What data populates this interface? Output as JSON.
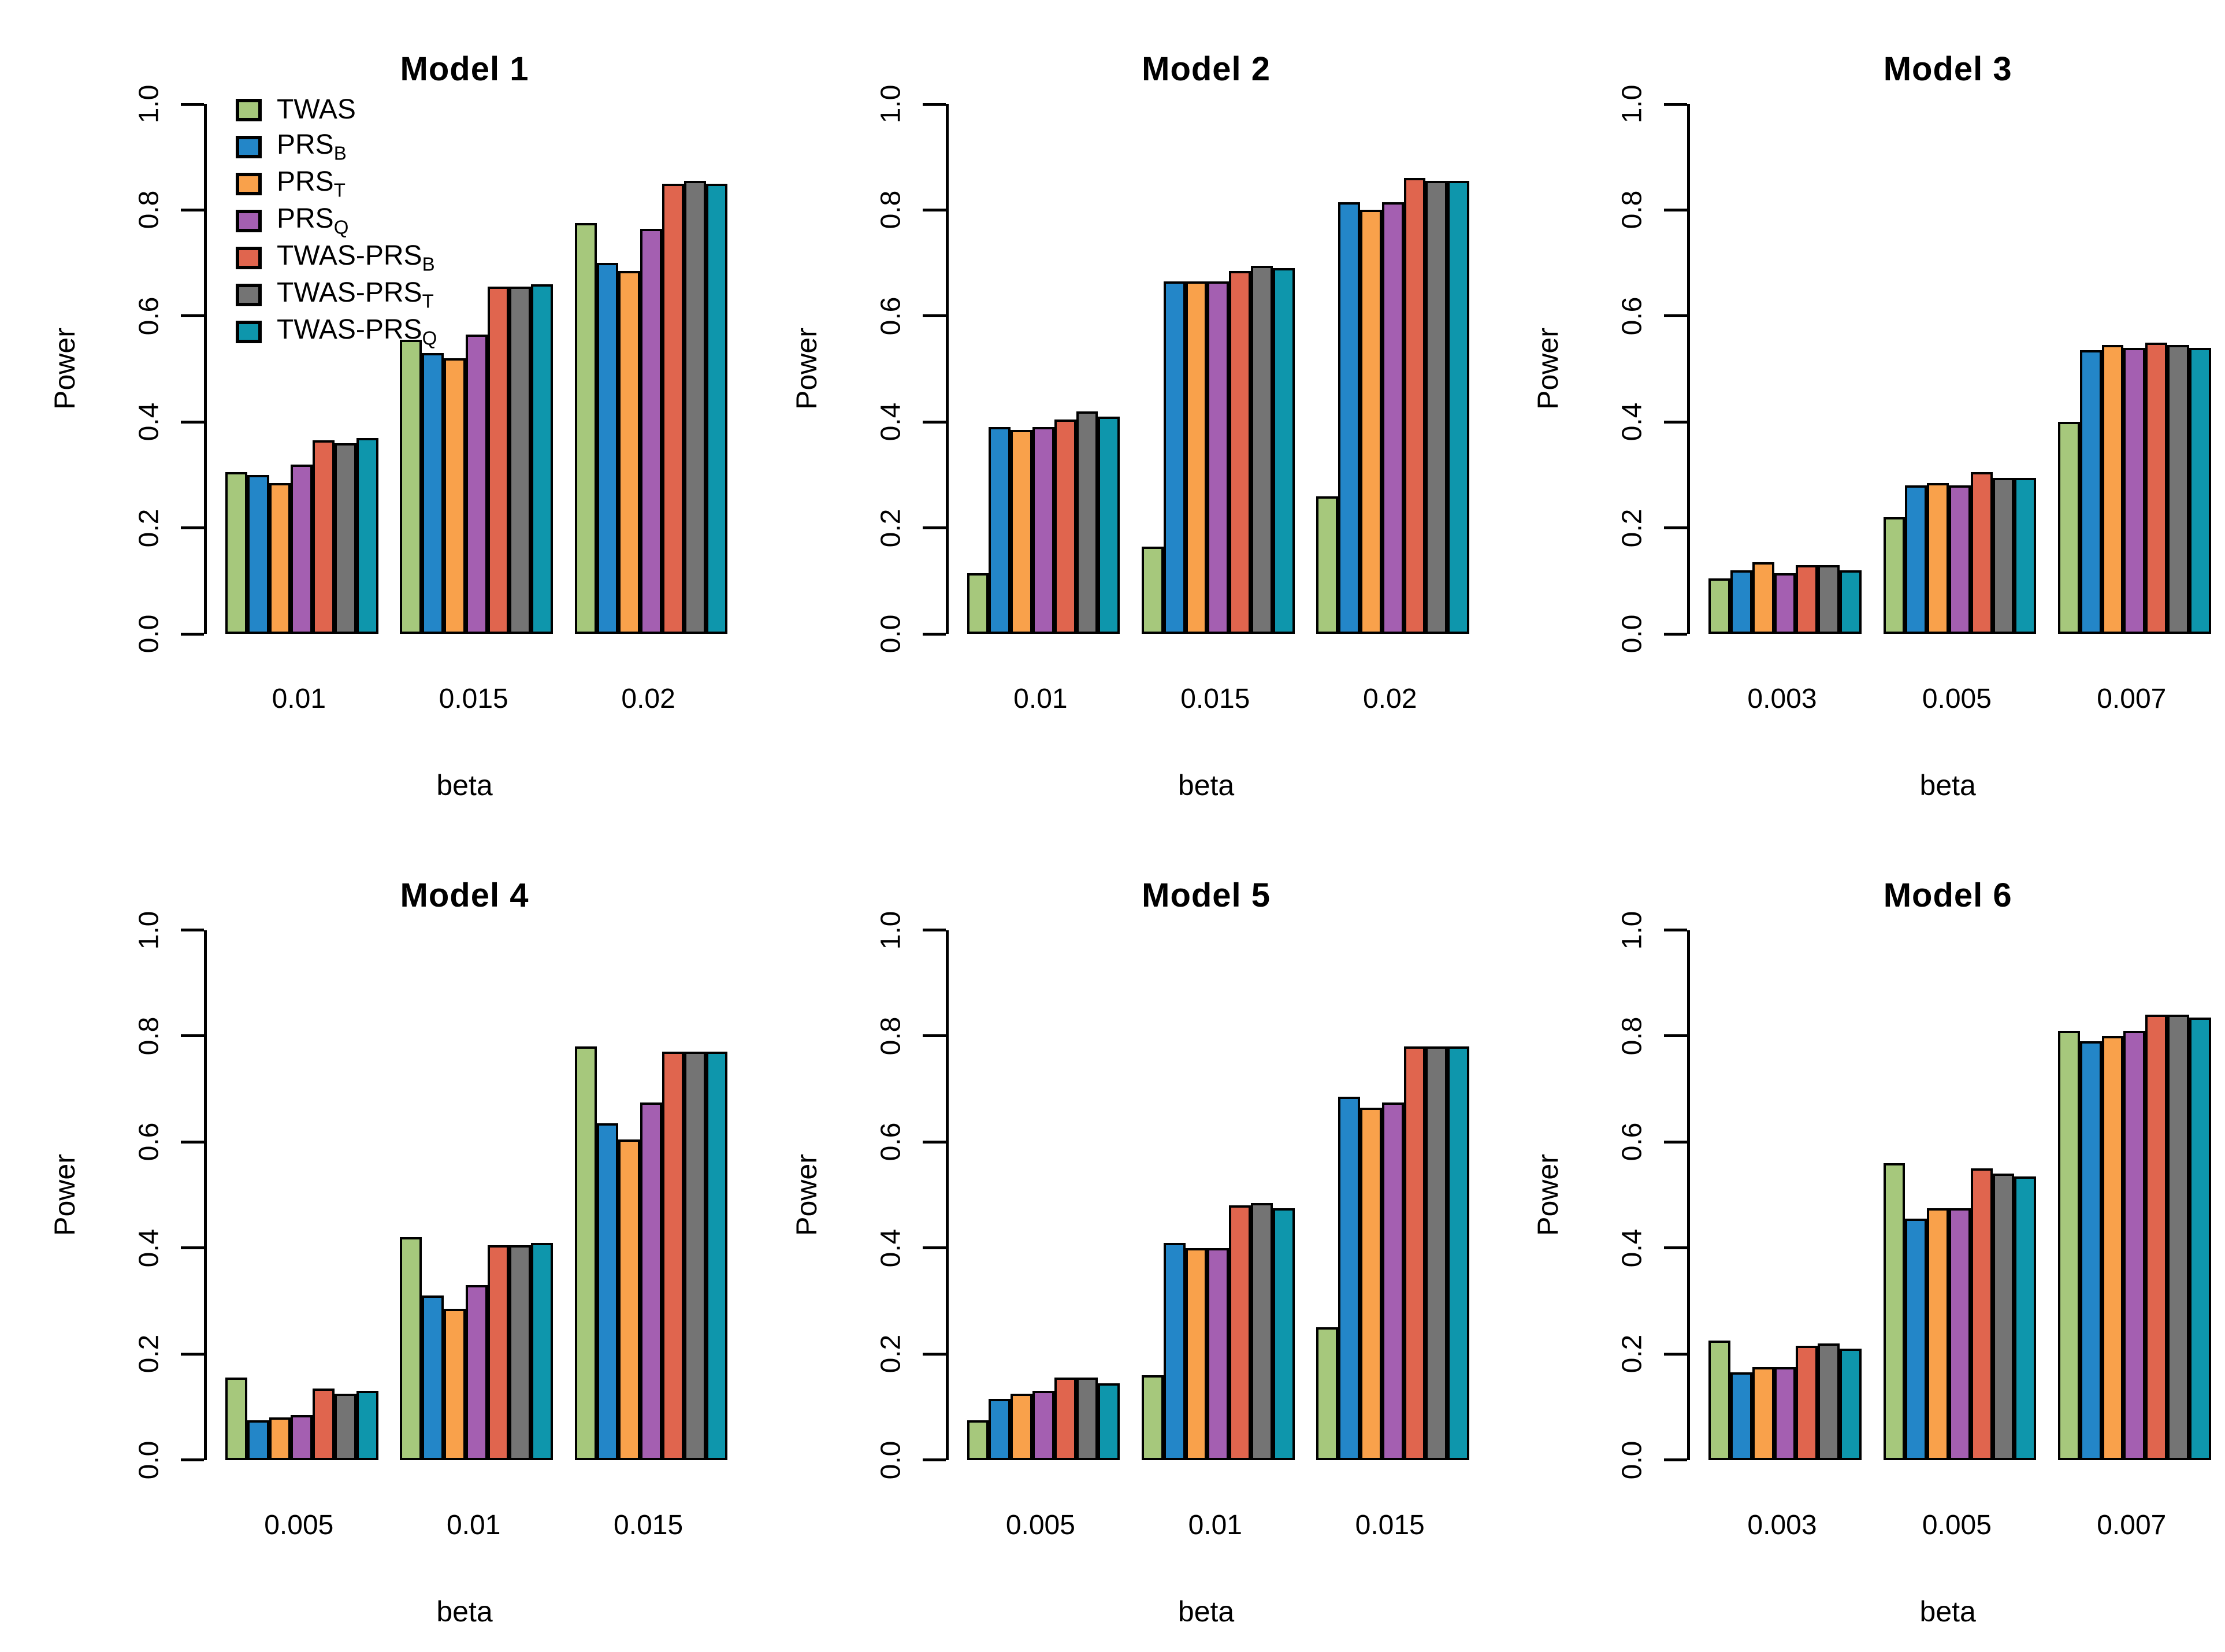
{
  "figure": {
    "ylabel": "Power",
    "xlabel": "beta",
    "ytick_labels": [
      "0.0",
      "0.2",
      "0.4",
      "0.6",
      "0.8",
      "1.0"
    ],
    "background_color": "#ffffff",
    "axis_color": "#000000",
    "bar_border_color": "#000000",
    "layout": "2 rows x 3 columns of grouped bar panels, legend inside Model 1 panel top-left"
  },
  "palette": {
    "TWAS": "#a6c87c",
    "PRS_B": "#2386c8",
    "PRS_T": "#f9a14b",
    "PRS_Q": "#a45fb1",
    "TWAS-PRS_B": "#e0654e",
    "TWAS-PRS_T": "#747474",
    "TWAS-PRS_Q": "#0e96ac"
  },
  "legend": {
    "position": "top-left inside Model 1 plot",
    "items": [
      {
        "name": "TWAS",
        "label_base": "TWAS",
        "label_sub": "",
        "color": "#a6c87c"
      },
      {
        "name": "PRS_B",
        "label_base": "PRS",
        "label_sub": "B",
        "color": "#2386c8"
      },
      {
        "name": "PRS_T",
        "label_base": "PRS",
        "label_sub": "T",
        "color": "#f9a14b"
      },
      {
        "name": "PRS_Q",
        "label_base": "PRS",
        "label_sub": "Q",
        "color": "#a45fb1"
      },
      {
        "name": "TWAS-PRS_B",
        "label_base": "TWAS-PRS",
        "label_sub": "B",
        "color": "#e0654e"
      },
      {
        "name": "TWAS-PRS_T",
        "label_base": "TWAS-PRS",
        "label_sub": "T",
        "color": "#747474"
      },
      {
        "name": "TWAS-PRS_Q",
        "label_base": "TWAS-PRS",
        "label_sub": "Q",
        "color": "#0e96ac"
      }
    ]
  },
  "chart_data": [
    {
      "type": "bar",
      "title": "Model 1",
      "xlabel": "beta",
      "ylabel": "Power",
      "ylim": [
        0,
        1
      ],
      "grid": false,
      "categories": [
        "0.01",
        "0.015",
        "0.02"
      ],
      "series": [
        {
          "name": "TWAS",
          "color": "#a6c87c",
          "values": [
            0.305,
            0.555,
            0.775
          ]
        },
        {
          "name": "PRS_B",
          "color": "#2386c8",
          "values": [
            0.3,
            0.53,
            0.7
          ]
        },
        {
          "name": "PRS_T",
          "color": "#f9a14b",
          "values": [
            0.285,
            0.52,
            0.685
          ]
        },
        {
          "name": "PRS_Q",
          "color": "#a45fb1",
          "values": [
            0.32,
            0.565,
            0.765
          ]
        },
        {
          "name": "TWAS-PRS_B",
          "color": "#e0654e",
          "values": [
            0.365,
            0.655,
            0.85
          ]
        },
        {
          "name": "TWAS-PRS_T",
          "color": "#747474",
          "values": [
            0.36,
            0.655,
            0.855
          ]
        },
        {
          "name": "TWAS-PRS_Q",
          "color": "#0e96ac",
          "values": [
            0.37,
            0.66,
            0.85
          ]
        }
      ]
    },
    {
      "type": "bar",
      "title": "Model 2",
      "xlabel": "beta",
      "ylabel": "Power",
      "ylim": [
        0,
        1
      ],
      "grid": false,
      "categories": [
        "0.01",
        "0.015",
        "0.02"
      ],
      "series": [
        {
          "name": "TWAS",
          "color": "#a6c87c",
          "values": [
            0.115,
            0.165,
            0.26
          ]
        },
        {
          "name": "PRS_B",
          "color": "#2386c8",
          "values": [
            0.39,
            0.665,
            0.815
          ]
        },
        {
          "name": "PRS_T",
          "color": "#f9a14b",
          "values": [
            0.385,
            0.665,
            0.8
          ]
        },
        {
          "name": "PRS_Q",
          "color": "#a45fb1",
          "values": [
            0.39,
            0.665,
            0.815
          ]
        },
        {
          "name": "TWAS-PRS_B",
          "color": "#e0654e",
          "values": [
            0.405,
            0.685,
            0.86
          ]
        },
        {
          "name": "TWAS-PRS_T",
          "color": "#747474",
          "values": [
            0.42,
            0.695,
            0.855
          ]
        },
        {
          "name": "TWAS-PRS_Q",
          "color": "#0e96ac",
          "values": [
            0.41,
            0.69,
            0.855
          ]
        }
      ]
    },
    {
      "type": "bar",
      "title": "Model 3",
      "xlabel": "beta",
      "ylabel": "Power",
      "ylim": [
        0,
        1
      ],
      "grid": false,
      "categories": [
        "0.003",
        "0.005",
        "0.007"
      ],
      "series": [
        {
          "name": "TWAS",
          "color": "#a6c87c",
          "values": [
            0.105,
            0.22,
            0.4
          ]
        },
        {
          "name": "PRS_B",
          "color": "#2386c8",
          "values": [
            0.12,
            0.28,
            0.535
          ]
        },
        {
          "name": "PRS_T",
          "color": "#f9a14b",
          "values": [
            0.135,
            0.285,
            0.545
          ]
        },
        {
          "name": "PRS_Q",
          "color": "#a45fb1",
          "values": [
            0.115,
            0.28,
            0.54
          ]
        },
        {
          "name": "TWAS-PRS_B",
          "color": "#e0654e",
          "values": [
            0.13,
            0.305,
            0.55
          ]
        },
        {
          "name": "TWAS-PRS_T",
          "color": "#747474",
          "values": [
            0.13,
            0.295,
            0.545
          ]
        },
        {
          "name": "TWAS-PRS_Q",
          "color": "#0e96ac",
          "values": [
            0.12,
            0.295,
            0.54
          ]
        }
      ]
    },
    {
      "type": "bar",
      "title": "Model 4",
      "xlabel": "beta",
      "ylabel": "Power",
      "ylim": [
        0,
        1
      ],
      "grid": false,
      "categories": [
        "0.005",
        "0.01",
        "0.015"
      ],
      "series": [
        {
          "name": "TWAS",
          "color": "#a6c87c",
          "values": [
            0.155,
            0.42,
            0.78
          ]
        },
        {
          "name": "PRS_B",
          "color": "#2386c8",
          "values": [
            0.075,
            0.31,
            0.635
          ]
        },
        {
          "name": "PRS_T",
          "color": "#f9a14b",
          "values": [
            0.08,
            0.285,
            0.605
          ]
        },
        {
          "name": "PRS_Q",
          "color": "#a45fb1",
          "values": [
            0.085,
            0.33,
            0.675
          ]
        },
        {
          "name": "TWAS-PRS_B",
          "color": "#e0654e",
          "values": [
            0.135,
            0.405,
            0.77
          ]
        },
        {
          "name": "TWAS-PRS_T",
          "color": "#747474",
          "values": [
            0.125,
            0.405,
            0.77
          ]
        },
        {
          "name": "TWAS-PRS_Q",
          "color": "#0e96ac",
          "values": [
            0.13,
            0.41,
            0.77
          ]
        }
      ]
    },
    {
      "type": "bar",
      "title": "Model 5",
      "xlabel": "beta",
      "ylabel": "Power",
      "ylim": [
        0,
        1
      ],
      "grid": false,
      "categories": [
        "0.005",
        "0.01",
        "0.015"
      ],
      "series": [
        {
          "name": "TWAS",
          "color": "#a6c87c",
          "values": [
            0.075,
            0.16,
            0.25
          ]
        },
        {
          "name": "PRS_B",
          "color": "#2386c8",
          "values": [
            0.115,
            0.41,
            0.685
          ]
        },
        {
          "name": "PRS_T",
          "color": "#f9a14b",
          "values": [
            0.125,
            0.4,
            0.665
          ]
        },
        {
          "name": "PRS_Q",
          "color": "#a45fb1",
          "values": [
            0.13,
            0.4,
            0.675
          ]
        },
        {
          "name": "TWAS-PRS_B",
          "color": "#e0654e",
          "values": [
            0.155,
            0.48,
            0.78
          ]
        },
        {
          "name": "TWAS-PRS_T",
          "color": "#747474",
          "values": [
            0.155,
            0.485,
            0.78
          ]
        },
        {
          "name": "TWAS-PRS_Q",
          "color": "#0e96ac",
          "values": [
            0.145,
            0.475,
            0.78
          ]
        }
      ]
    },
    {
      "type": "bar",
      "title": "Model 6",
      "xlabel": "beta",
      "ylabel": "Power",
      "ylim": [
        0,
        1
      ],
      "grid": false,
      "categories": [
        "0.003",
        "0.005",
        "0.007"
      ],
      "series": [
        {
          "name": "TWAS",
          "color": "#a6c87c",
          "values": [
            0.225,
            0.56,
            0.81
          ]
        },
        {
          "name": "PRS_B",
          "color": "#2386c8",
          "values": [
            0.165,
            0.455,
            0.79
          ]
        },
        {
          "name": "PRS_T",
          "color": "#f9a14b",
          "values": [
            0.175,
            0.475,
            0.8
          ]
        },
        {
          "name": "PRS_Q",
          "color": "#a45fb1",
          "values": [
            0.175,
            0.475,
            0.81
          ]
        },
        {
          "name": "TWAS-PRS_B",
          "color": "#e0654e",
          "values": [
            0.215,
            0.55,
            0.84
          ]
        },
        {
          "name": "TWAS-PRS_T",
          "color": "#747474",
          "values": [
            0.22,
            0.54,
            0.84
          ]
        },
        {
          "name": "TWAS-PRS_Q",
          "color": "#0e96ac",
          "values": [
            0.21,
            0.535,
            0.835
          ]
        }
      ]
    }
  ]
}
